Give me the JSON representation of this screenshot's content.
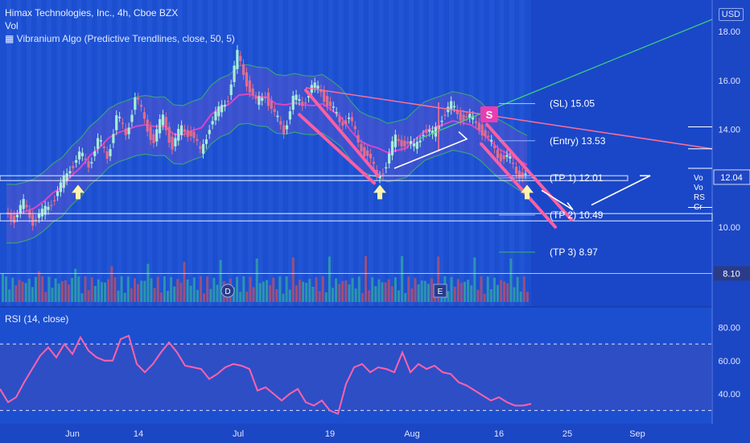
{
  "header": {
    "symbol_line": "Himax Technologies, Inc., 4h, Cboe BZX",
    "vol_label": "Vol",
    "indicator_line": "Vibranium Algo (Predictive Trendlines, close, 50, 5)",
    "currency": "USD"
  },
  "rsi_panel": {
    "label": "RSI (14, close)"
  },
  "colors": {
    "background": "#1b4fd0",
    "background_right": "#1a47c8",
    "candle_up": "#a8ecd8",
    "candle_down": "#e26c8e",
    "trend_pink": "#ff5fa2",
    "band_purple": "#8a55c9",
    "band_green": "#3fb36a",
    "rsi_line": "#ff63a8",
    "rsi_fill": "#3c4fc0",
    "label_dark": "#1b2a66",
    "price_box": "#2047c4",
    "signal_box": "#e83fb0"
  },
  "chart_data": [
    {
      "type": "candlestick",
      "title": "Himax Technologies, Inc., 4h, Cboe BZX",
      "x_tick_labels": [
        "Jun",
        "14",
        "Jul",
        "19",
        "Aug",
        "16",
        "25",
        "Sep"
      ],
      "y_tick_labels": [
        "18.00",
        "16.00",
        "14.00",
        "12.00",
        "10.00"
      ],
      "ylim": [
        9.4,
        18.7
      ],
      "last_price": 12.04,
      "last_price_label": "12.04",
      "grid": false,
      "levels": [
        {
          "name": "SL",
          "label": "(SL) 15.05",
          "value": 15.05
        },
        {
          "name": "Entry",
          "label": "(Entry) 13.53",
          "value": 13.53
        },
        {
          "name": "TP1",
          "label": "(TP 1) 12.01",
          "value": 12.01
        },
        {
          "name": "TP2",
          "label": "(TP 2) 10.49",
          "value": 10.49
        },
        {
          "name": "TP3",
          "label": "(TP 3) 8.97",
          "value": 8.97
        }
      ],
      "extra_price_label": "8.10",
      "signal_marker": "S",
      "event_markers": [
        "D",
        "E"
      ],
      "right_legend_labels": [
        "Vo",
        "Vo",
        "RS",
        "Cr"
      ],
      "close_path": [
        10.6,
        10.4,
        10.9,
        10.3,
        10.5,
        11.1,
        11.6,
        12.5,
        12.9,
        12.6,
        13.5,
        12.9,
        14.5,
        13.8,
        15.3,
        14.4,
        13.5,
        14.5,
        13.3,
        14.0,
        13.9,
        13.0,
        14.2,
        14.7,
        15.4,
        17.0,
        16.0,
        15.0,
        15.5,
        14.5,
        14.0,
        15.2,
        15.1,
        15.7,
        15.6,
        14.9,
        14.3,
        14.5,
        13.4,
        13.0,
        12.0,
        12.6,
        13.6,
        13.5,
        13.2,
        14.0,
        13.7,
        14.6,
        14.9,
        14.6,
        14.4,
        14.2,
        13.5,
        13.0,
        12.8,
        12.3,
        12.1
      ]
    },
    {
      "type": "line",
      "title": "RSI (14, close)",
      "y_tick_labels": [
        "80.00",
        "60.00",
        "40.00"
      ],
      "ylim": [
        25,
        88
      ],
      "overbought": 70,
      "oversold": 30,
      "x": [
        0,
        5,
        10,
        15,
        20,
        25,
        30,
        35,
        40,
        45,
        50,
        55,
        60,
        65,
        70,
        75,
        80,
        85,
        90,
        95,
        100,
        105,
        110,
        115,
        120,
        125,
        130,
        135,
        140,
        145,
        150,
        155,
        160,
        165,
        170,
        175,
        180,
        185,
        190,
        195,
        200,
        205,
        210,
        215,
        220,
        225,
        230,
        235,
        240,
        245,
        250,
        255,
        260,
        265,
        270,
        275,
        280,
        285,
        290,
        295,
        300,
        305,
        310,
        315,
        320,
        325,
        330
      ],
      "values": [
        43,
        35,
        38,
        47,
        55,
        63,
        68,
        62,
        70,
        64,
        74,
        66,
        62,
        60,
        60,
        73,
        75,
        58,
        53,
        58,
        65,
        71,
        65,
        57,
        56,
        55,
        49,
        52,
        56,
        58,
        57,
        55,
        42,
        44,
        40,
        36,
        40,
        43,
        35,
        33,
        36,
        30,
        28,
        46,
        56,
        58,
        53,
        56,
        55,
        53,
        65,
        53,
        58,
        55,
        57,
        53,
        52,
        47,
        45,
        42,
        39,
        36,
        38,
        35,
        33,
        33,
        34
      ]
    }
  ]
}
